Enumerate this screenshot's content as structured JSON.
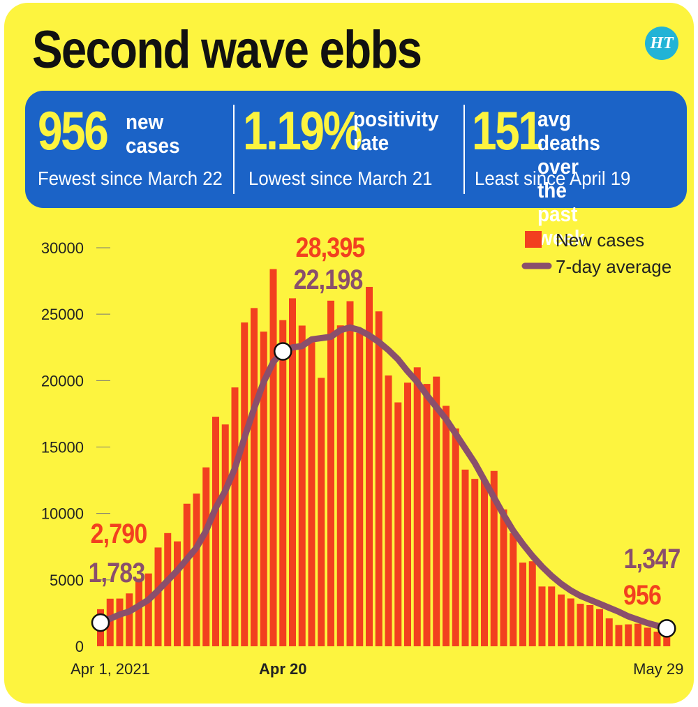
{
  "title": "Second wave ebbs",
  "logo_text": "HT",
  "stats": [
    {
      "value": "956",
      "label": "new\ncases",
      "note": "Fewest since March 22"
    },
    {
      "value": "1.19%",
      "label": "positivity\nrate",
      "note": "Lowest since March 21"
    },
    {
      "value": "151",
      "label": "avg deaths over\nthe past week",
      "note": "Least since April 19"
    }
  ],
  "colors": {
    "bar": "#f2401f",
    "line": "#8a4f6c",
    "background": "#fdf43f",
    "panel": "#1b63c7",
    "peak_text": "#f2401f",
    "avg_text": "#8a4f6c"
  },
  "chart_data": {
    "type": "bar",
    "ylim": [
      0,
      30000
    ],
    "y_ticks": [
      "0",
      "5000",
      "10000",
      "15000",
      "20000",
      "25000",
      "30000"
    ],
    "x_tick_labels": [
      "Apr 1, 2021",
      "Apr 20",
      "May 29"
    ],
    "legend": {
      "bars": "New cases",
      "line": "7-day average"
    },
    "series": [
      {
        "name": "New cases",
        "type": "bar",
        "values": [
          2790,
          3583,
          3594,
          3979,
          5100,
          5481,
          7437,
          8521,
          7897,
          10732,
          11491,
          13468,
          17282,
          16699,
          19486,
          24375,
          25462,
          23686,
          28395,
          24551,
          26196,
          24143,
          22898,
          20207,
          26017,
          24157,
          25979,
          23603,
          27057,
          25210,
          20385,
          18360,
          19844,
          21000,
          19750,
          20300,
          18100,
          16400,
          13300,
          12600,
          12500,
          13200,
          10300,
          8507,
          6300,
          6400,
          4500,
          4500,
          3900,
          3600,
          3200,
          3100,
          2800,
          2100,
          1600,
          1650,
          1700,
          1400,
          1100,
          956
        ]
      },
      {
        "name": "7-day average",
        "type": "line",
        "values": [
          1783,
          2080,
          2390,
          2620,
          3050,
          3500,
          4200,
          4950,
          5700,
          6560,
          7420,
          8700,
          10410,
          11700,
          13400,
          15700,
          17900,
          19900,
          21400,
          22198,
          22500,
          22600,
          23100,
          23200,
          23300,
          23800,
          24000,
          23800,
          23400,
          22900,
          22300,
          21600,
          20700,
          19900,
          18900,
          18000,
          17100,
          16000,
          14900,
          13800,
          12500,
          11200,
          9900,
          8700,
          7700,
          6800,
          6000,
          5300,
          4700,
          4200,
          3800,
          3500,
          3200,
          2900,
          2600,
          2250,
          2000,
          1750,
          1550,
          1347
        ]
      }
    ],
    "annotations": [
      {
        "peak": "2,790",
        "avg": "1,783"
      },
      {
        "peak": "28,395",
        "avg": "22,198"
      },
      {
        "peak": "956",
        "avg": "1,347"
      }
    ]
  }
}
